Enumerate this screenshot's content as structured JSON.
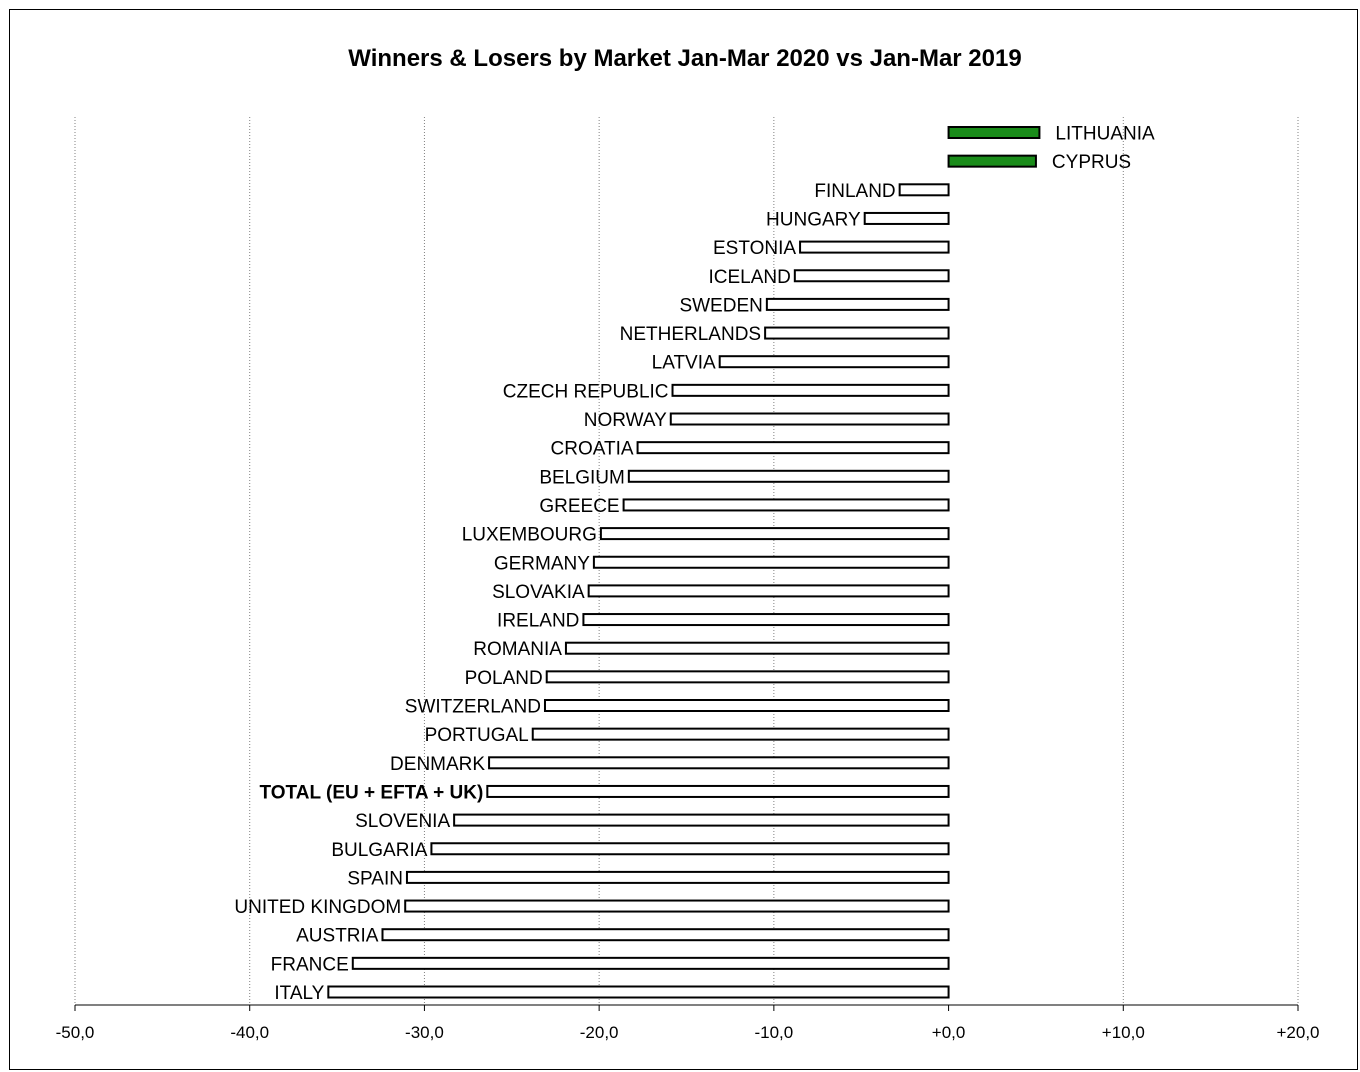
{
  "chart_data": {
    "type": "bar",
    "orientation": "horizontal",
    "title": "Winners & Losers by Market  Jan-Mar 2020 vs Jan-Mar 2019",
    "xlim": [
      -50,
      20
    ],
    "xticks": [
      -50,
      -40,
      -30,
      -20,
      -10,
      0,
      10,
      20
    ],
    "xtick_labels": [
      "-50,0",
      "-40,0",
      "-30,0",
      "-20,0",
      "-10,0",
      "+0,0",
      "+10,0",
      "+20,0"
    ],
    "grid": "vertical dotted",
    "legend": "none",
    "colors": {
      "positive": "#1a8c1a",
      "negative": "#ffffff",
      "outline": "#000000"
    },
    "categories": [
      "LITHUANIA",
      "CYPRUS",
      "FINLAND",
      "HUNGARY",
      "ESTONIA",
      "ICELAND",
      "SWEDEN",
      "NETHERLANDS",
      "LATVIA",
      "CZECH REPUBLIC",
      "NORWAY",
      "CROATIA",
      "BELGIUM",
      "GREECE",
      "LUXEMBOURG",
      "GERMANY",
      "SLOVAKIA",
      "IRELAND",
      "ROMANIA",
      "POLAND",
      "SWITZERLAND",
      "PORTUGAL",
      "DENMARK",
      "TOTAL (EU + EFTA + UK)",
      "SLOVENIA",
      "BULGARIA",
      "SPAIN",
      "UNITED KINGDOM",
      "AUSTRIA",
      "FRANCE",
      "ITALY"
    ],
    "values": [
      5.2,
      5.0,
      -2.8,
      -4.8,
      -8.5,
      -8.8,
      -10.4,
      -10.5,
      -13.1,
      -15.8,
      -15.9,
      -17.8,
      -18.3,
      -18.6,
      -19.9,
      -20.3,
      -20.6,
      -20.9,
      -21.9,
      -23.0,
      -23.1,
      -23.8,
      -26.3,
      -26.4,
      -28.3,
      -29.6,
      -31.0,
      -31.1,
      -32.4,
      -34.1,
      -35.5
    ],
    "highlight_category": "TOTAL (EU + EFTA + UK)"
  }
}
